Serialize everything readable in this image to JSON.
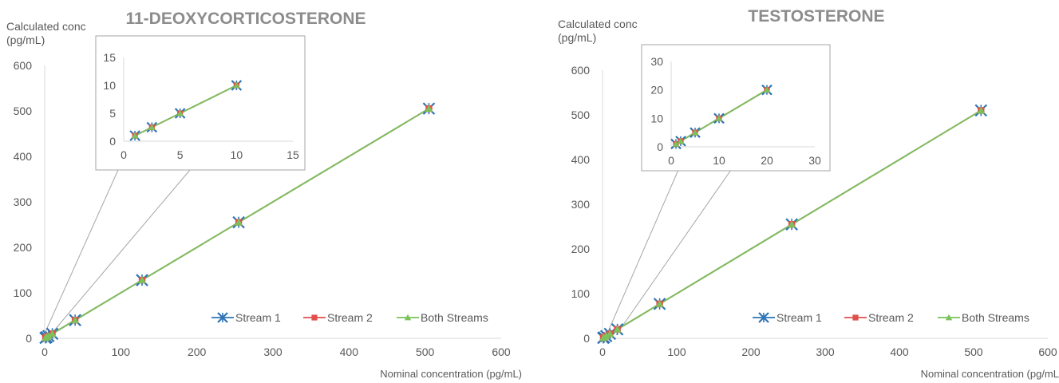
{
  "colors": {
    "stream1": "#2e75b6",
    "stream2": "#e0504d",
    "both": "#7cc25a"
  },
  "legend": [
    "Stream 1",
    "Stream 2",
    "Both Streams"
  ],
  "chart_data": [
    {
      "type": "line",
      "title": "11-DEOXYCORTICOSTERONE",
      "ylabel": [
        "Calculated conc",
        "(pg/mL)"
      ],
      "xlabel": "Nominal concentration (pg/mL)",
      "xlim": [
        0,
        600
      ],
      "ylim": [
        0,
        600
      ],
      "xticks": [
        "0",
        "100",
        "200",
        "300",
        "400",
        "500",
        "600"
      ],
      "yticks": [
        "0",
        "100",
        "200",
        "300",
        "400",
        "500",
        "600"
      ],
      "series": [
        {
          "name": "Stream 1",
          "x": [
            1,
            2.5,
            5,
            10,
            40,
            128,
            255,
            505
          ],
          "y": [
            1,
            2.5,
            5,
            10,
            40,
            128,
            255,
            505
          ]
        },
        {
          "name": "Stream 2",
          "x": [
            1,
            2.5,
            5,
            10,
            40,
            128,
            255,
            505
          ],
          "y": [
            1,
            2.5,
            5,
            10,
            40,
            128,
            255,
            505
          ]
        },
        {
          "name": "Both Streams",
          "x": [
            1,
            2.5,
            5,
            10,
            40,
            128,
            255,
            505
          ],
          "y": [
            1,
            2.5,
            5,
            10,
            40,
            128,
            255,
            505
          ]
        }
      ],
      "inset": {
        "xlim": [
          0,
          15
        ],
        "ylim": [
          0,
          15
        ],
        "xticks": [
          "0",
          "5",
          "10",
          "15"
        ],
        "yticks": [
          "0",
          "5",
          "10",
          "15"
        ]
      }
    },
    {
      "type": "line",
      "title": "TESTOSTERONE",
      "ylabel": [
        "Calculated conc",
        "(pg/mL)"
      ],
      "xlabel": "Nominal concentration (pg/mL",
      "xlim": [
        0,
        600
      ],
      "ylim": [
        0,
        600
      ],
      "xticks": [
        "0",
        "100",
        "200",
        "300",
        "400",
        "500",
        "600"
      ],
      "yticks": [
        "0",
        "100",
        "200",
        "300",
        "400",
        "500",
        "600"
      ],
      "series": [
        {
          "name": "Stream 1",
          "x": [
            1,
            2,
            5,
            10,
            20,
            77,
            255,
            510
          ],
          "y": [
            1,
            2,
            5,
            10,
            20,
            77,
            255,
            510
          ]
        },
        {
          "name": "Stream 2",
          "x": [
            1,
            2,
            5,
            10,
            20,
            77,
            255,
            510
          ],
          "y": [
            1,
            2,
            5,
            10,
            20,
            77,
            255,
            510
          ]
        },
        {
          "name": "Both Streams",
          "x": [
            1,
            2,
            5,
            10,
            20,
            77,
            255,
            510
          ],
          "y": [
            1,
            2,
            5,
            10,
            20,
            77,
            255,
            510
          ]
        }
      ],
      "inset": {
        "xlim": [
          0,
          30
        ],
        "ylim": [
          0,
          30
        ],
        "xticks": [
          "0",
          "10",
          "20",
          "30"
        ],
        "yticks": [
          "0",
          "10",
          "20",
          "30"
        ]
      }
    }
  ]
}
